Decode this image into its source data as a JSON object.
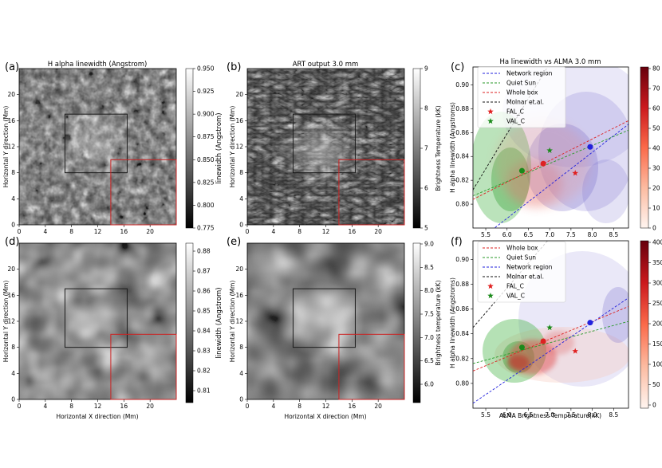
{
  "panels": {
    "a": {
      "letter": "(a)",
      "title": "H alpha linewidth (Angstrom)",
      "xlabel": "",
      "ylabel": "Horizontal Y direction (Mm)",
      "colorbar": {
        "label": "linewidth (Angstrom)",
        "ticks": [
          "0.775",
          "0.800",
          "0.825",
          "0.850",
          "0.875",
          "0.900",
          "0.925",
          "0.950"
        ]
      }
    },
    "b": {
      "letter": "(b)",
      "title": "ART output 3.0 mm",
      "xlabel": "",
      "ylabel": "Horizontal Y direction (Mm)",
      "colorbar": {
        "label": "Brightness Temperature (kK)",
        "ticks": [
          "5",
          "6",
          "7",
          "8",
          "9"
        ]
      }
    },
    "c": {
      "letter": "(c)",
      "title": "Ha linewidth vs ALMA 3.0 mm",
      "xlabel": "",
      "ylabel": "H alpha linewidth (Angstroms)",
      "legend": [
        "Network region",
        "Quiet Sun",
        "Whole box",
        "Molnar et.al.",
        "FAL_C",
        "VAL_C"
      ],
      "colorbar": {
        "ticks": [
          "0",
          "10",
          "20",
          "30",
          "40",
          "50",
          "60",
          "70",
          "80"
        ]
      }
    },
    "d": {
      "letter": "(d)",
      "title": "",
      "xlabel": "Horizontal X direction (Mm)",
      "ylabel": "Horizontal Y direction (Mm)",
      "colorbar": {
        "label": "linewidth (Angstrom)",
        "ticks": [
          "0.81",
          "0.82",
          "0.83",
          "0.84",
          "0.85",
          "0.86",
          "0.87",
          "0.88"
        ]
      }
    },
    "e": {
      "letter": "(e)",
      "title": "",
      "xlabel": "Horizontal X direction (Mm)",
      "ylabel": "Horizontal Y direction (Mm)",
      "colorbar": {
        "label": "Brightness temperature (kK)",
        "ticks": [
          "6.0",
          "6.5",
          "7.0",
          "7.5",
          "8.0",
          "8.5",
          "9.0"
        ]
      }
    },
    "f": {
      "letter": "(f)",
      "title": "",
      "xlabel": "ALMA Brightness Temperature(kK)",
      "ylabel": "H alpha linewidth (Angstroms)",
      "legend": [
        "Whole box",
        "Quiet Sun",
        "Network region",
        "Molnar et.al.",
        "FAL_C",
        "VAL_C"
      ],
      "colorbar": {
        "ticks": [
          "0",
          "50",
          "100",
          "150",
          "200",
          "250",
          "300",
          "350",
          "400"
        ]
      }
    }
  },
  "map_axes": {
    "xticks": [
      "0",
      "4",
      "8",
      "12",
      "16",
      "20"
    ],
    "yticks": [
      "0",
      "4",
      "8",
      "12",
      "16",
      "20"
    ]
  },
  "scatter_axes": {
    "xticks": [
      "5.5",
      "6.0",
      "6.5",
      "7.0",
      "7.5",
      "8.0",
      "8.5"
    ],
    "yticks": [
      "0.80",
      "0.82",
      "0.84",
      "0.86",
      "0.88",
      "0.90"
    ]
  },
  "colors": {
    "network": "#2222dd",
    "quiet": "#2a9a2a",
    "whole": "#dd2222",
    "molnar": "#111111",
    "fal": "#e02020",
    "val": "#1a8a1a",
    "box_black": "#1a1a1a",
    "box_red": "#cc2222"
  },
  "chart_data": [
    {
      "type": "heatmap",
      "panel": "a",
      "title": "H alpha linewidth (Angstrom)",
      "quantity": "H alpha linewidth",
      "unit": "Angstrom",
      "xlim": [
        0,
        24
      ],
      "ylim": [
        0,
        24
      ],
      "clim": [
        0.77,
        0.96
      ],
      "regions": [
        {
          "name": "network",
          "x": [
            7,
            16.5
          ],
          "y": [
            8,
            17
          ]
        },
        {
          "name": "quiet",
          "x": [
            14,
            24
          ],
          "y": [
            0,
            10
          ]
        }
      ]
    },
    {
      "type": "heatmap",
      "panel": "b",
      "title": "ART output 3.0 mm",
      "quantity": "Brightness Temperature",
      "unit": "kK",
      "xlim": [
        0,
        24
      ],
      "ylim": [
        0,
        24
      ],
      "clim": [
        4.6,
        9.8
      ],
      "regions": [
        {
          "name": "network",
          "x": [
            7,
            16.5
          ],
          "y": [
            8,
            17
          ]
        },
        {
          "name": "quiet",
          "x": [
            14,
            24
          ],
          "y": [
            0,
            10
          ]
        }
      ]
    },
    {
      "type": "scatter",
      "panel": "c",
      "title": "Ha linewidth vs ALMA 3.0 mm",
      "xlim": [
        5.2,
        8.85
      ],
      "ylim": [
        0.78,
        0.915
      ],
      "clim": [
        0,
        85
      ],
      "fit_lines": [
        {
          "name": "Network region",
          "x": [
            5.2,
            8.85
          ],
          "y": [
            0.766,
            0.867
          ]
        },
        {
          "name": "Quiet Sun",
          "x": [
            5.2,
            8.85
          ],
          "y": [
            0.807,
            0.862
          ]
        },
        {
          "name": "Whole box",
          "x": [
            5.2,
            8.85
          ],
          "y": [
            0.804,
            0.87
          ]
        },
        {
          "name": "Molnar et.al.",
          "x": [
            5.2,
            6.95
          ],
          "y": [
            0.812,
            0.915
          ]
        }
      ],
      "model_points": [
        {
          "name": "FAL_C",
          "x": 7.6,
          "y": 0.826
        },
        {
          "name": "VAL_C",
          "x": 7.0,
          "y": 0.845
        }
      ],
      "mean_points": [
        {
          "region": "Quiet Sun",
          "x": 6.35,
          "y": 0.828
        },
        {
          "region": "Whole box",
          "x": 6.85,
          "y": 0.834
        },
        {
          "region": "Network region",
          "x": 7.95,
          "y": 0.848
        }
      ]
    },
    {
      "type": "heatmap",
      "panel": "d",
      "quantity": "H alpha linewidth (degraded)",
      "unit": "Angstrom",
      "xlim": [
        0,
        24
      ],
      "ylim": [
        0,
        24
      ],
      "clim": [
        0.805,
        0.89
      ],
      "regions": [
        {
          "name": "network",
          "x": [
            7,
            16.5
          ],
          "y": [
            8,
            17
          ]
        },
        {
          "name": "quiet",
          "x": [
            14,
            24
          ],
          "y": [
            0,
            10
          ]
        }
      ]
    },
    {
      "type": "heatmap",
      "panel": "e",
      "quantity": "Brightness temperature (degraded)",
      "unit": "kK",
      "xlim": [
        0,
        24
      ],
      "ylim": [
        0,
        24
      ],
      "clim": [
        5.6,
        9.1
      ],
      "regions": [
        {
          "name": "network",
          "x": [
            7,
            16.5
          ],
          "y": [
            8,
            17
          ]
        },
        {
          "name": "quiet",
          "x": [
            14,
            24
          ],
          "y": [
            0,
            10
          ]
        }
      ]
    },
    {
      "type": "scatter",
      "panel": "f",
      "xlim": [
        5.2,
        8.85
      ],
      "ylim": [
        0.78,
        0.915
      ],
      "clim": [
        0,
        410
      ],
      "fit_lines": [
        {
          "name": "Whole box",
          "x": [
            5.2,
            8.85
          ],
          "y": [
            0.81,
            0.862
          ]
        },
        {
          "name": "Quiet Sun",
          "x": [
            5.2,
            8.85
          ],
          "y": [
            0.816,
            0.85
          ]
        },
        {
          "name": "Network region",
          "x": [
            5.2,
            8.85
          ],
          "y": [
            0.784,
            0.869
          ]
        },
        {
          "name": "Molnar et.al.",
          "x": [
            5.2,
            6.95
          ],
          "y": [
            0.845,
            0.915
          ]
        }
      ],
      "model_points": [
        {
          "name": "FAL_C",
          "x": 7.6,
          "y": 0.826
        },
        {
          "name": "VAL_C",
          "x": 7.0,
          "y": 0.845
        }
      ],
      "mean_points": [
        {
          "region": "Quiet Sun",
          "x": 6.35,
          "y": 0.829
        },
        {
          "region": "Whole box",
          "x": 6.85,
          "y": 0.834
        },
        {
          "region": "Network region",
          "x": 7.95,
          "y": 0.849
        }
      ]
    }
  ]
}
